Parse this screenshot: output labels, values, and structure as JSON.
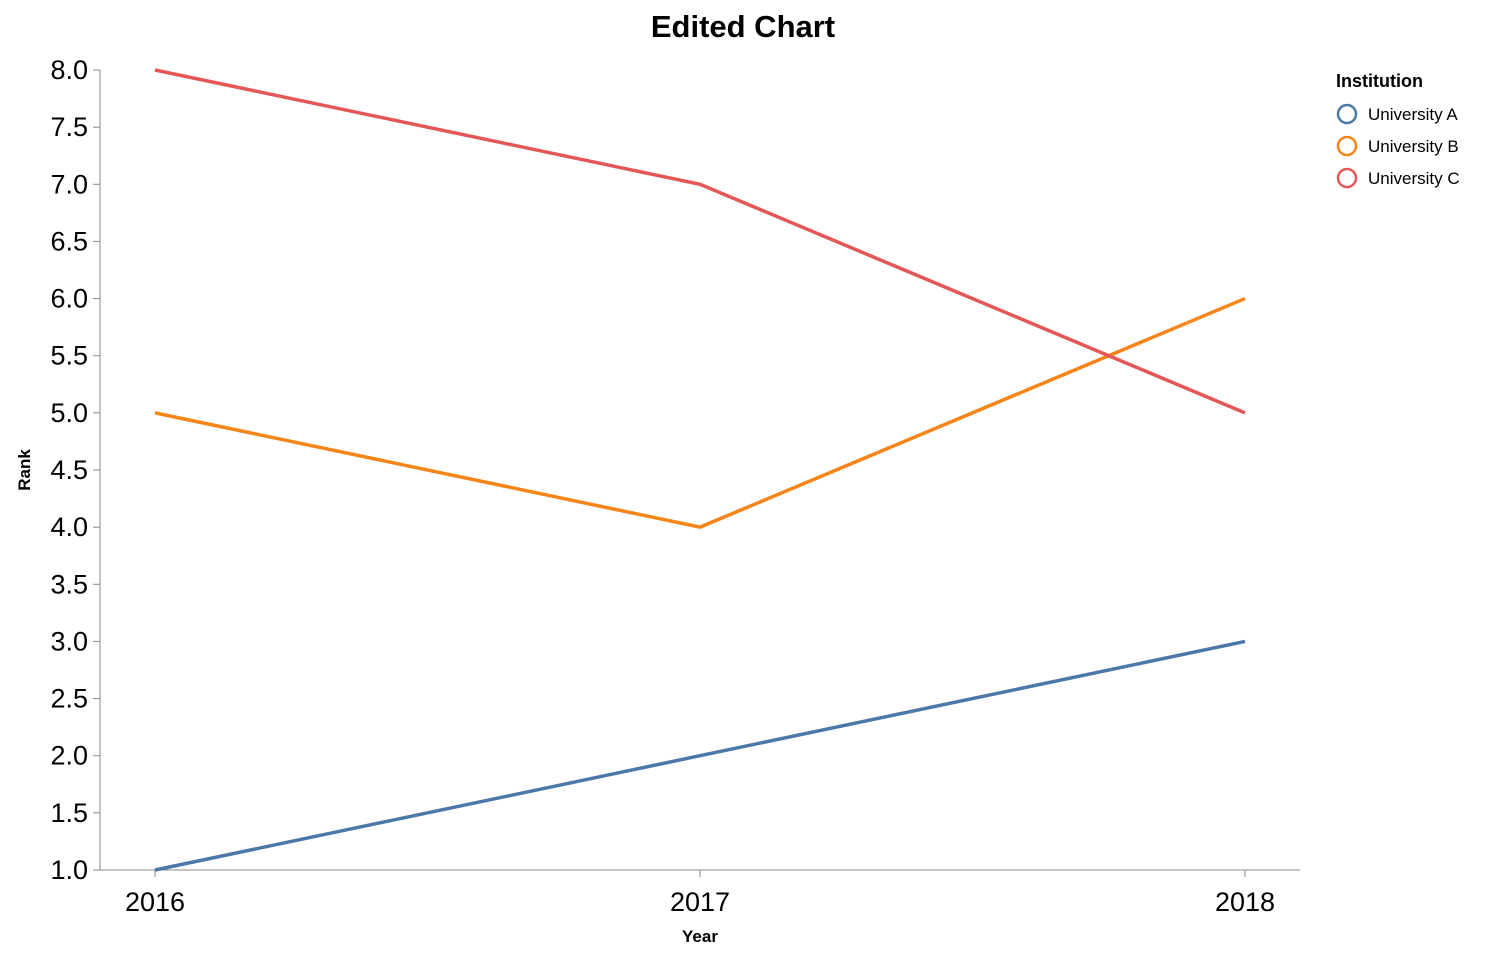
{
  "chart_data": {
    "type": "line",
    "title": "Edited Chart",
    "xlabel": "Year",
    "ylabel": "Rank",
    "x": [
      "2016",
      "2017",
      "2018"
    ],
    "ylim": [
      1.0,
      8.0
    ],
    "yticks": [
      "1.0",
      "1.5",
      "2.0",
      "2.5",
      "3.0",
      "3.5",
      "4.0",
      "4.5",
      "5.0",
      "5.5",
      "6.0",
      "6.5",
      "7.0",
      "7.5",
      "8.0"
    ],
    "grid": false,
    "legend": {
      "title": "Institution",
      "placement": "top-right"
    },
    "series": [
      {
        "name": "University A",
        "color": "#4c78a8",
        "values": [
          1,
          2,
          3
        ]
      },
      {
        "name": "University B",
        "color": "#f58518",
        "values": [
          5,
          4,
          6
        ]
      },
      {
        "name": "University C",
        "color": "#e45756",
        "values": [
          8,
          7,
          5
        ]
      }
    ]
  }
}
